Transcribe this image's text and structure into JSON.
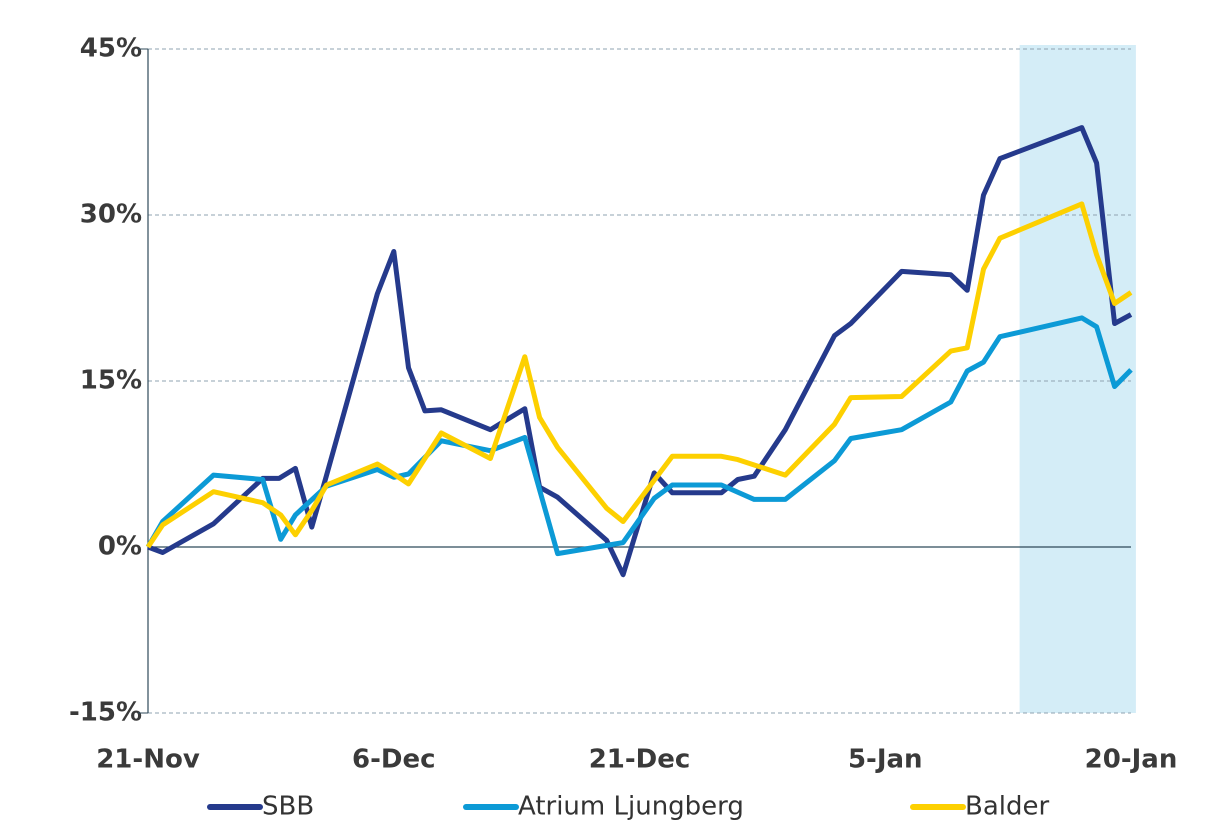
{
  "chart_data": {
    "type": "line",
    "xlim": [
      0,
      60
    ],
    "xticks": [
      {
        "value": 0,
        "label": "21-Nov"
      },
      {
        "value": 15,
        "label": "6-Dec"
      },
      {
        "value": 30,
        "label": "21-Dec"
      },
      {
        "value": 45,
        "label": "5-Jan"
      },
      {
        "value": 60,
        "label": "20-Jan"
      }
    ],
    "ylim": [
      -15,
      45
    ],
    "yticks": [
      {
        "value": -15,
        "label": "-15%"
      },
      {
        "value": 0,
        "label": "0%"
      },
      {
        "value": 15,
        "label": "15%"
      },
      {
        "value": 30,
        "label": "30%"
      },
      {
        "value": 45,
        "label": "45%"
      }
    ],
    "grid": true,
    "highlight": [
      53.2,
      60.3
    ],
    "series": [
      {
        "name": "SBB",
        "color": "#253a8c",
        "x": [
          0,
          0.9,
          4.0,
          7.0,
          8.0,
          9.0,
          10.0,
          10.9,
          14.0,
          15.0,
          15.9,
          16.9,
          17.9,
          20.9,
          23.0,
          23.9,
          25.0,
          28.0,
          29.0,
          30.9,
          32.0,
          35.0,
          36.0,
          37.0,
          38.9,
          41.9,
          42.9,
          46.0,
          49.0,
          50.0,
          51.0,
          52.0,
          57.0,
          57.9,
          59.0,
          60.0
        ],
        "values": [
          0,
          -0.5,
          2.1,
          6.2,
          6.2,
          7.1,
          1.8,
          6.5,
          22.9,
          26.7,
          16.2,
          12.3,
          12.4,
          10.6,
          12.5,
          5.4,
          4.5,
          0.6,
          -2.5,
          6.7,
          4.9,
          4.9,
          6.1,
          6.4,
          10.6,
          19.1,
          20.2,
          24.9,
          24.6,
          23.2,
          31.8,
          35.1,
          37.9,
          34.7,
          20.2,
          21.0
        ]
      },
      {
        "name": "Atrium Ljungberg",
        "color": "#0c9ad6",
        "x": [
          0,
          0.9,
          4.0,
          7.0,
          8.1,
          9.0,
          10.9,
          14.0,
          15.0,
          15.9,
          17.9,
          20.9,
          23.0,
          25.0,
          29.0,
          30.9,
          32.0,
          35.0,
          37.0,
          38.9,
          41.9,
          42.9,
          46.0,
          49.0,
          50.0,
          51.0,
          52.0,
          57.0,
          57.9,
          59.0,
          60.0
        ],
        "values": [
          0,
          2.3,
          6.5,
          6.1,
          0.7,
          2.9,
          5.5,
          7.0,
          6.3,
          6.6,
          9.6,
          8.7,
          9.9,
          -0.6,
          0.4,
          4.4,
          5.6,
          5.6,
          4.3,
          4.3,
          7.8,
          9.8,
          10.6,
          13.1,
          15.9,
          16.7,
          19.0,
          20.7,
          19.9,
          14.5,
          16.0
        ]
      },
      {
        "name": "Balder",
        "color": "#fdd000",
        "x": [
          0,
          0.9,
          4.0,
          7.0,
          8.1,
          9.0,
          10.0,
          10.9,
          14.0,
          15.0,
          15.9,
          17.9,
          20.9,
          23.0,
          23.9,
          25.0,
          28.0,
          29.0,
          32.0,
          35.0,
          36.0,
          38.9,
          41.9,
          42.9,
          46.0,
          49.0,
          50.0,
          51.0,
          52.0,
          57.0,
          57.9,
          59.0,
          60.0
        ],
        "values": [
          0,
          2.0,
          5.0,
          4.0,
          2.9,
          1.1,
          3.3,
          5.6,
          7.5,
          6.6,
          5.7,
          10.3,
          8.0,
          17.2,
          11.7,
          9.0,
          3.5,
          2.3,
          8.2,
          8.2,
          7.9,
          6.5,
          11.1,
          13.5,
          13.6,
          17.7,
          18.0,
          25.1,
          27.9,
          31.0,
          26.4,
          22.0,
          23.0
        ]
      }
    ]
  }
}
